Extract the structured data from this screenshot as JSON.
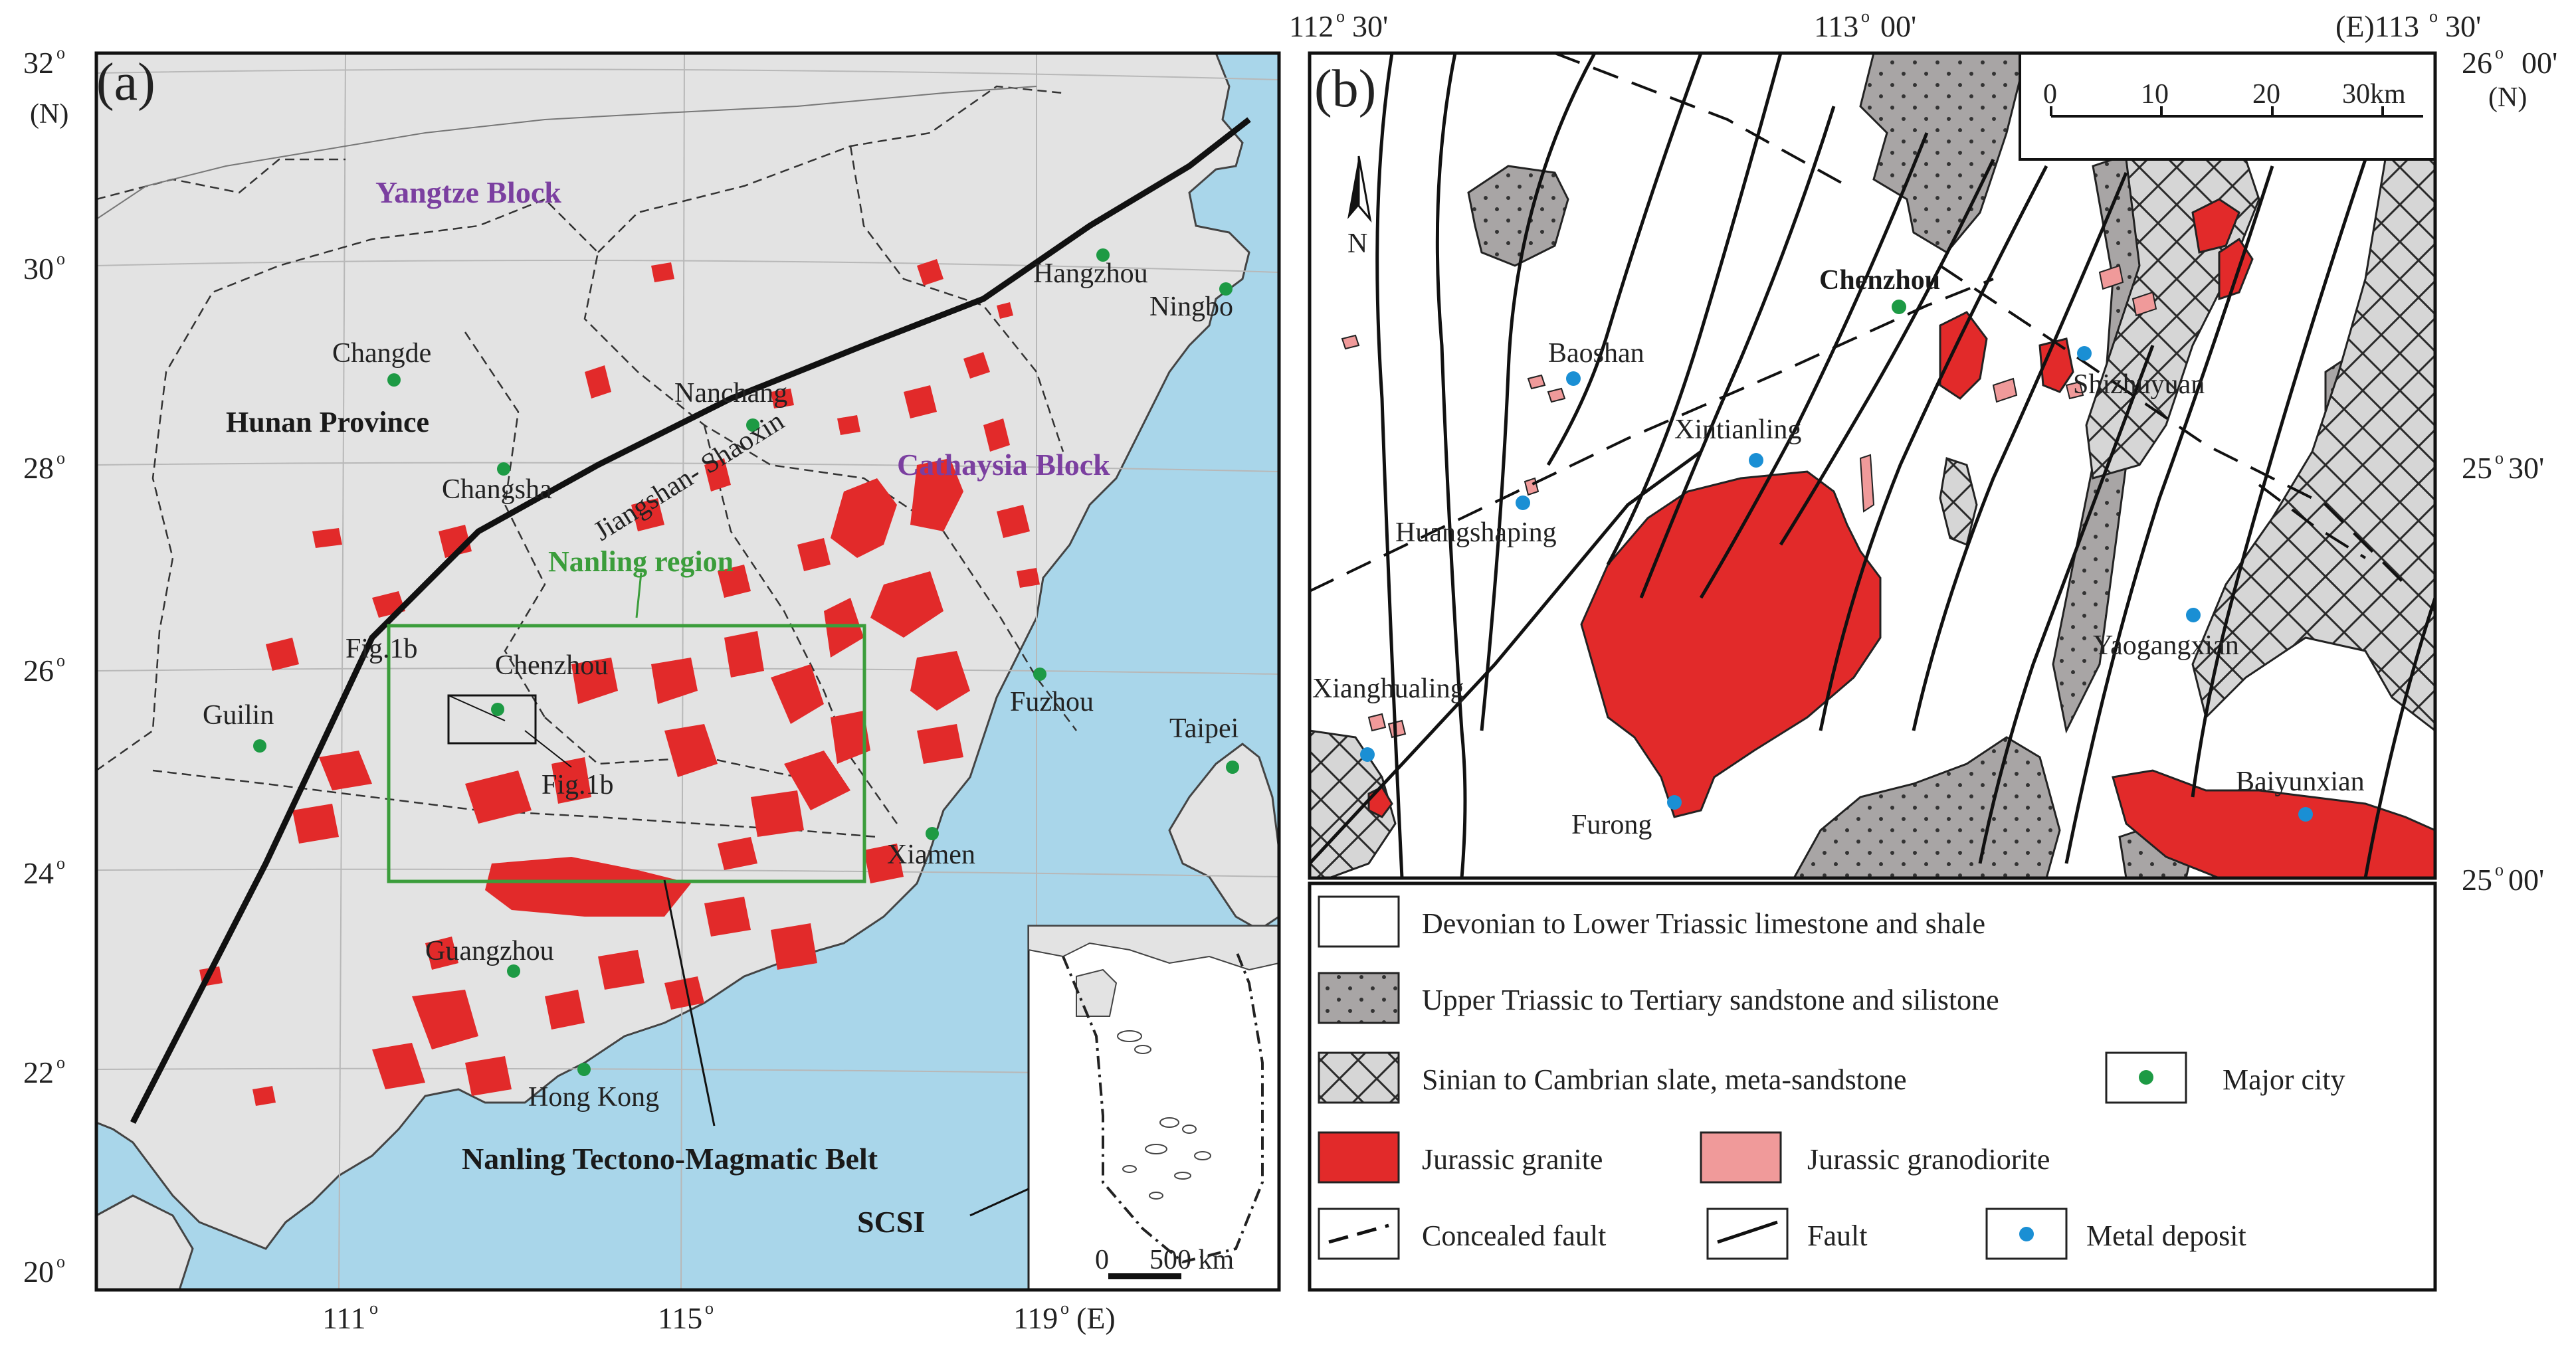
{
  "panel_a": {
    "label": "(a)",
    "lat_ticks": [
      "32",
      "30",
      "28",
      "26",
      "24",
      "22",
      "20"
    ],
    "lat_unit": "(N)",
    "lon_ticks": [
      "111",
      "115",
      "119"
    ],
    "lon_unit": "(E)",
    "regions": {
      "yangtze": "Yangtze Block",
      "cathaysia": "Cathaysia Block",
      "hunan": "Hunan Province",
      "nanling_region": "Nanling region",
      "belt": "Nanling Tectono-Magmatic Belt",
      "scsi": "SCSI",
      "suture": "Jiangshan- Shaoxin"
    },
    "cities": [
      "Changde",
      "Nanchang",
      "Hangzhou",
      "Ningbo",
      "Changsha",
      "Chenzhou",
      "Guilin",
      "Fuzhou",
      "Taipei",
      "Xiamen",
      "Guangzhou",
      "Hong Kong"
    ],
    "fig_refs": [
      "Fig.1b",
      "Fig.1b"
    ],
    "scale_bar": {
      "zero": "0",
      "label": "500 km"
    }
  },
  "panel_b": {
    "label": "(b)",
    "top_lon_labels": [
      "112",
      "30'",
      "113",
      "00'",
      "(E)113",
      "30'"
    ],
    "right_lat_labels": [
      "26",
      "00'",
      "(N)",
      "25",
      "30'",
      "25",
      "00'"
    ],
    "north": "N",
    "scale": {
      "ticks": [
        "0",
        "10",
        "20",
        "30km"
      ]
    },
    "places": [
      "Chenzhou",
      "Baoshan",
      "Shizhuyuan",
      "Xintianling",
      "Huangshaping",
      "Yaogangxian",
      "Xianghualing",
      "Furong",
      "Baiyunxian"
    ]
  },
  "legend": {
    "devonian": "Devonian to Lower Triassic limestone and shale",
    "triassic": "Upper Triassic to Tertiary sandstone and silistone",
    "sinian": "Sinian to Cambrian slate, meta-sandstone",
    "major_city": "Major city",
    "granite": "Jurassic granite",
    "granodiorite": "Jurassic granodiorite",
    "concealed_fault": "Concealed fault",
    "fault": "Fault",
    "metal_deposit": "Metal deposit"
  },
  "colors": {
    "ocean": "#a9d6ea",
    "land": "#e3e3e3",
    "granite": "#e22a2a",
    "granodiorite": "#f09a9a",
    "sandstone": "#a8a5a5",
    "slate": "#d6d6d6",
    "city": "#1d9a44",
    "deposit": "#1a8fd4",
    "region_title": "#7b3fa0",
    "nanling": "#3b9d3b"
  }
}
